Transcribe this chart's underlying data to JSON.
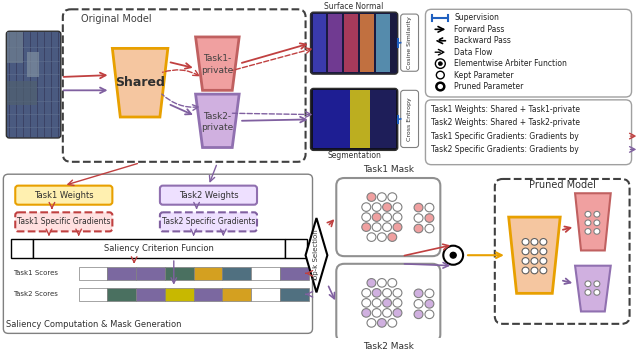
{
  "colors": {
    "shared_fill": "#F5C6A0",
    "shared_edge": "#E8A000",
    "task1_fill": "#F0A0A0",
    "task1_edge": "#C06060",
    "task2_fill": "#D0B0E0",
    "task2_edge": "#9070B0",
    "red_arrow": "#C04040",
    "purple_arrow": "#8060A0",
    "blue": "#2060C0",
    "bg": "#FFFFFF",
    "dashed_border": "#404040",
    "score_purple": "#7B68A0",
    "score_green": "#4A7060",
    "score_orange": "#D4A020",
    "score_teal": "#507080",
    "score_yellow": "#C8B800"
  },
  "sn_colors": [
    "#4040C0",
    "#8040A0",
    "#C04060",
    "#E08040",
    "#60A0C0"
  ],
  "score_t1": [
    "white",
    "#7B68A0",
    "#7B68A0",
    "#4A7060",
    "#D4A020",
    "#507080",
    "white",
    "#7B68A0"
  ],
  "score_t2": [
    "white",
    "#4A7060",
    "#7B68A0",
    "#C8B800",
    "#7B68A0",
    "#D4A020",
    "white",
    "#507080"
  ],
  "legend2_items": [
    "Task1 Weights: Shared + Task1-private",
    "Task2 Weights: Shared + Task2-private",
    "Task1 Specific Gradients: Gradients by",
    "Task2 Specific Gradients: Gradients by"
  ]
}
